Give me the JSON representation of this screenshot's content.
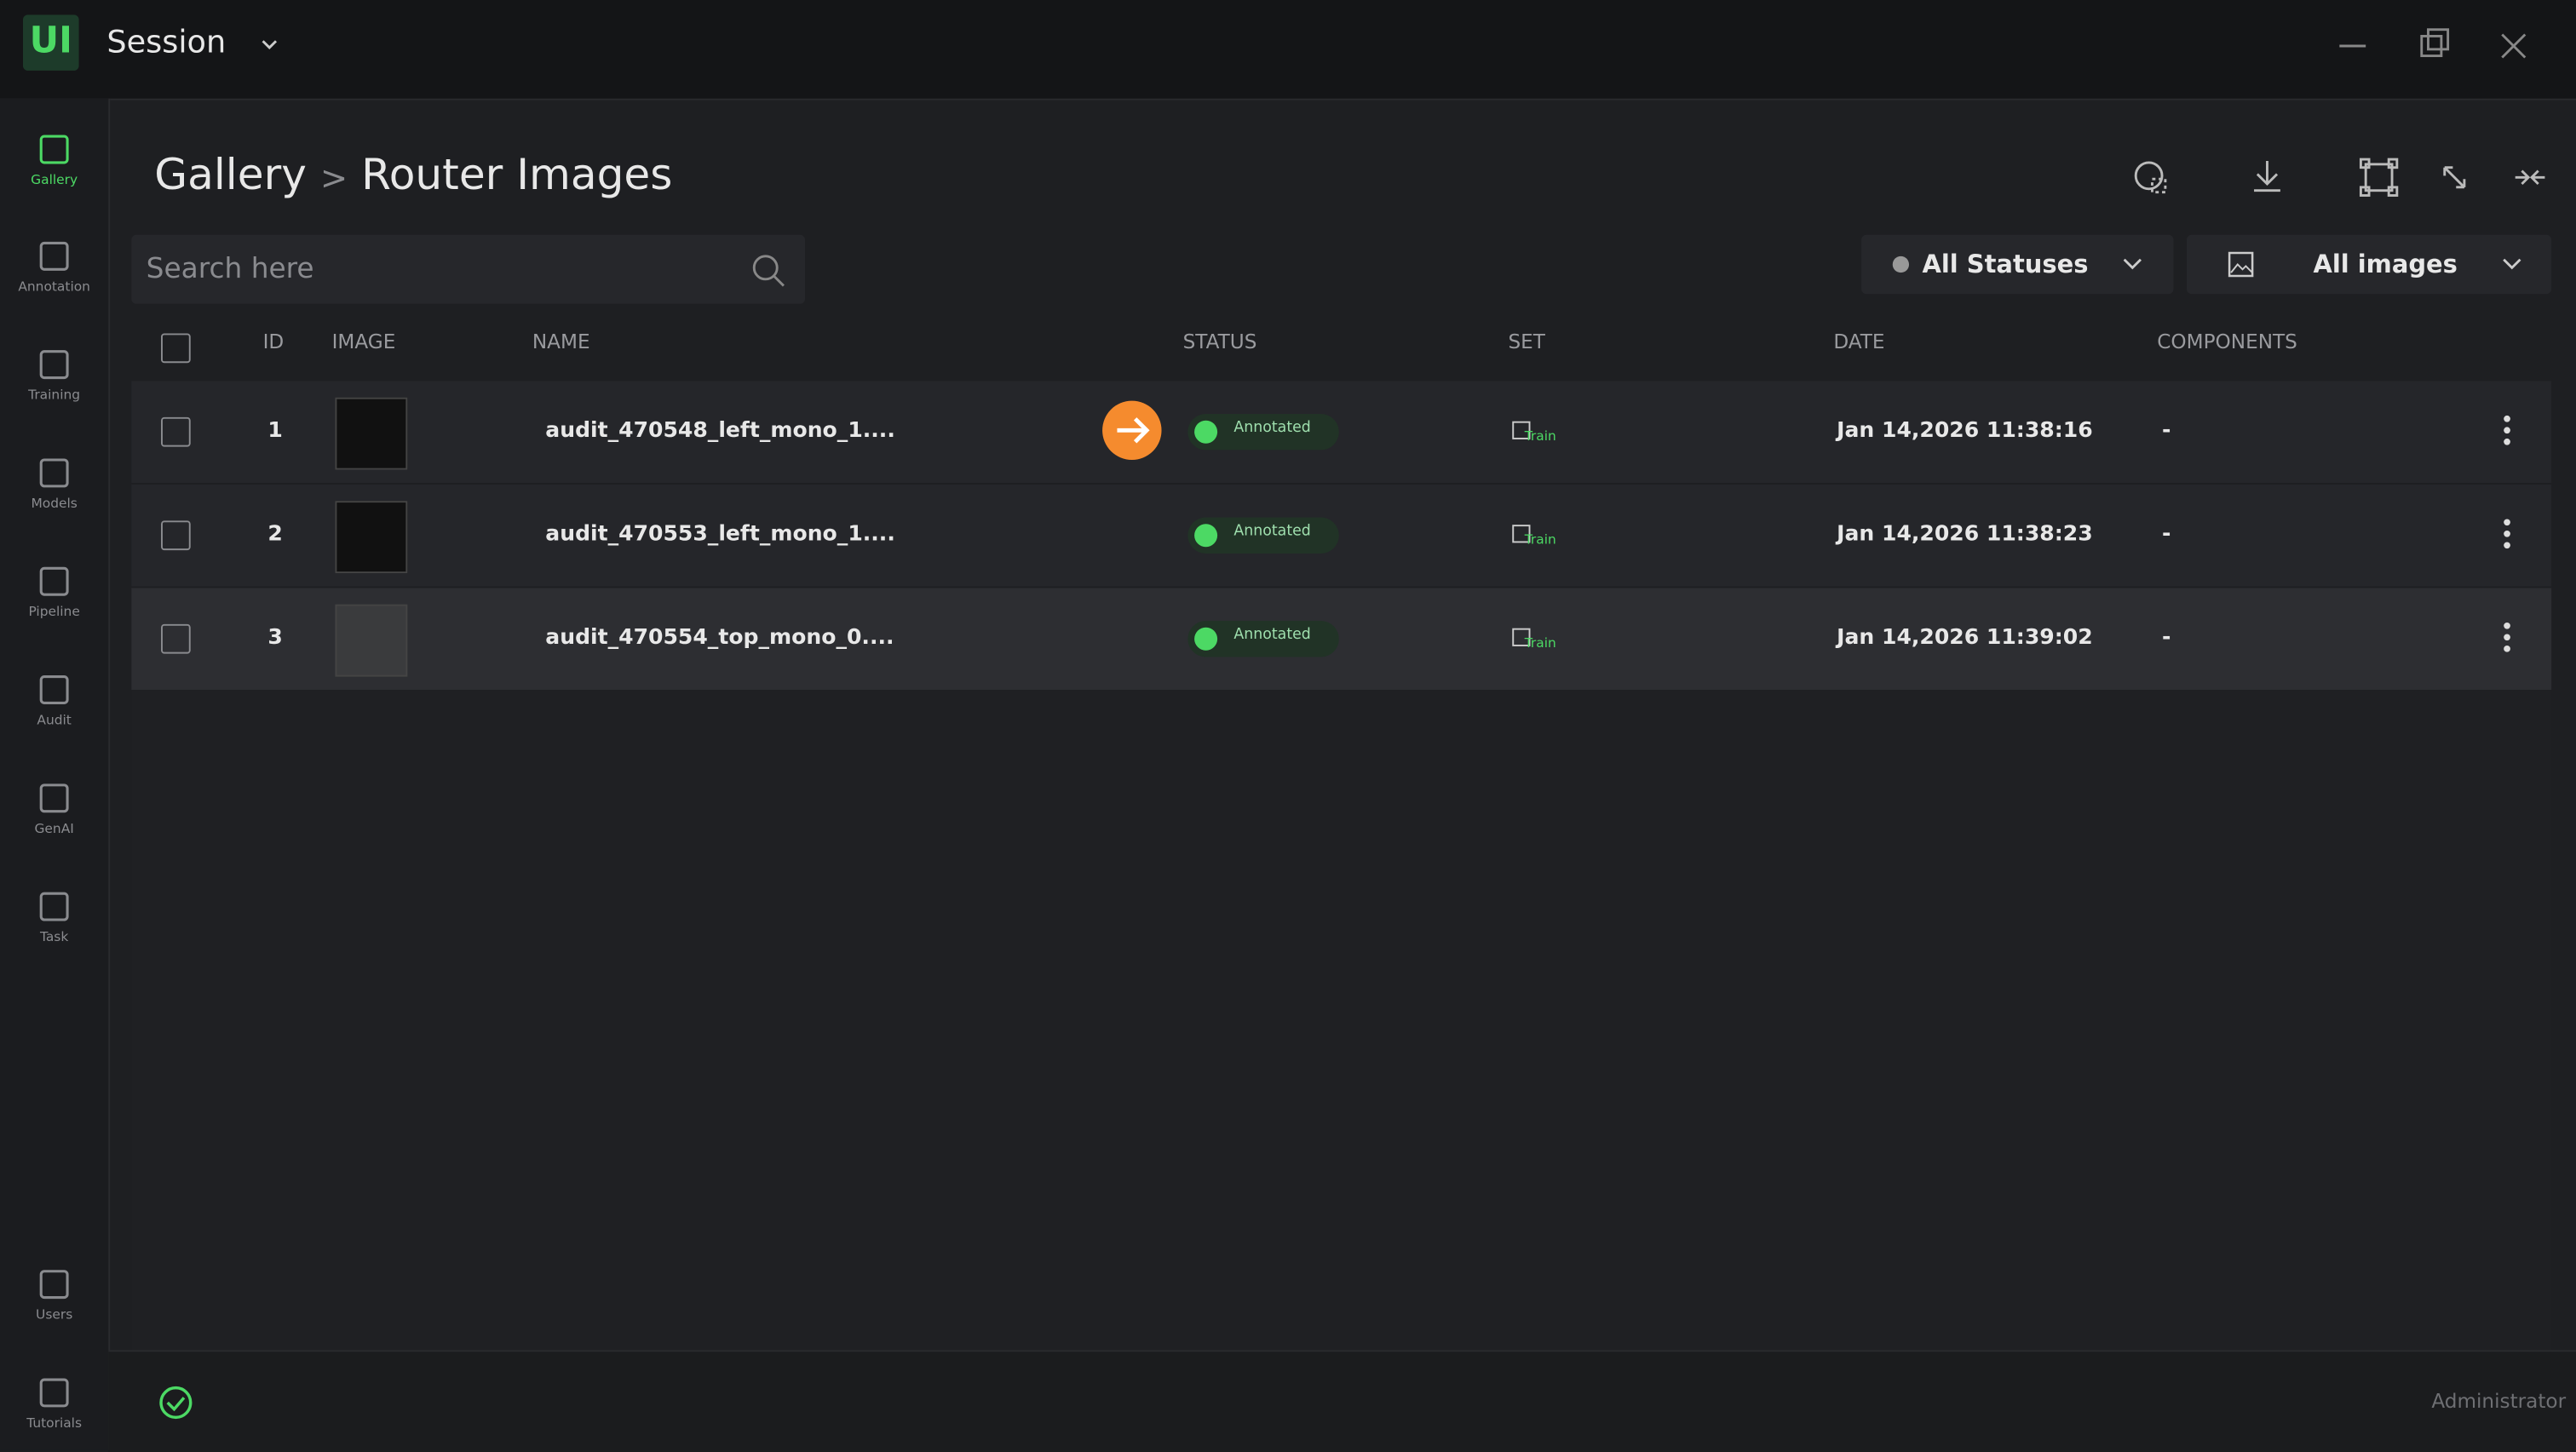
{
  "app": {
    "logo": "UI",
    "title": "Session"
  },
  "sidebar": [
    {
      "label": "Gallery"
    },
    {
      "label": "Annotation"
    },
    {
      "label": "Training"
    },
    {
      "label": "Models"
    },
    {
      "label": "Pipeline"
    },
    {
      "label": "Audit"
    },
    {
      "label": "GenAI"
    },
    {
      "label": "Task"
    },
    {
      "label": "Users"
    },
    {
      "label": "Tutorials"
    }
  ],
  "breadcrumb": {
    "root": "Gallery",
    "separator": ">",
    "current": "Router Images"
  },
  "search": {
    "placeholder": "Search here"
  },
  "filters": {
    "status": "All Statuses",
    "images": "All images"
  },
  "table": {
    "headers": [
      "ID",
      "IMAGE",
      "NAME",
      "STATUS",
      "SET",
      "DATE",
      "COMPONENTS"
    ],
    "rows": [
      {
        "id": 1,
        "name": "audit_470548_left_mono_1....",
        "status": "Annotated",
        "set": "Train",
        "date": "Jan 14,2026 11:38:16",
        "components": "-"
      },
      {
        "id": 2,
        "name": "audit_470553_left_mono_1....",
        "status": "Annotated",
        "set": "Train",
        "date": "Jan 14,2026 11:38:23",
        "components": "-"
      },
      {
        "id": 3,
        "name": "audit_470554_top_mono_0....",
        "status": "Annotated",
        "set": "Train",
        "date": "Jan 14,2026 11:39:02",
        "components": "-"
      }
    ]
  },
  "footer": {
    "user": "Administrator"
  }
}
